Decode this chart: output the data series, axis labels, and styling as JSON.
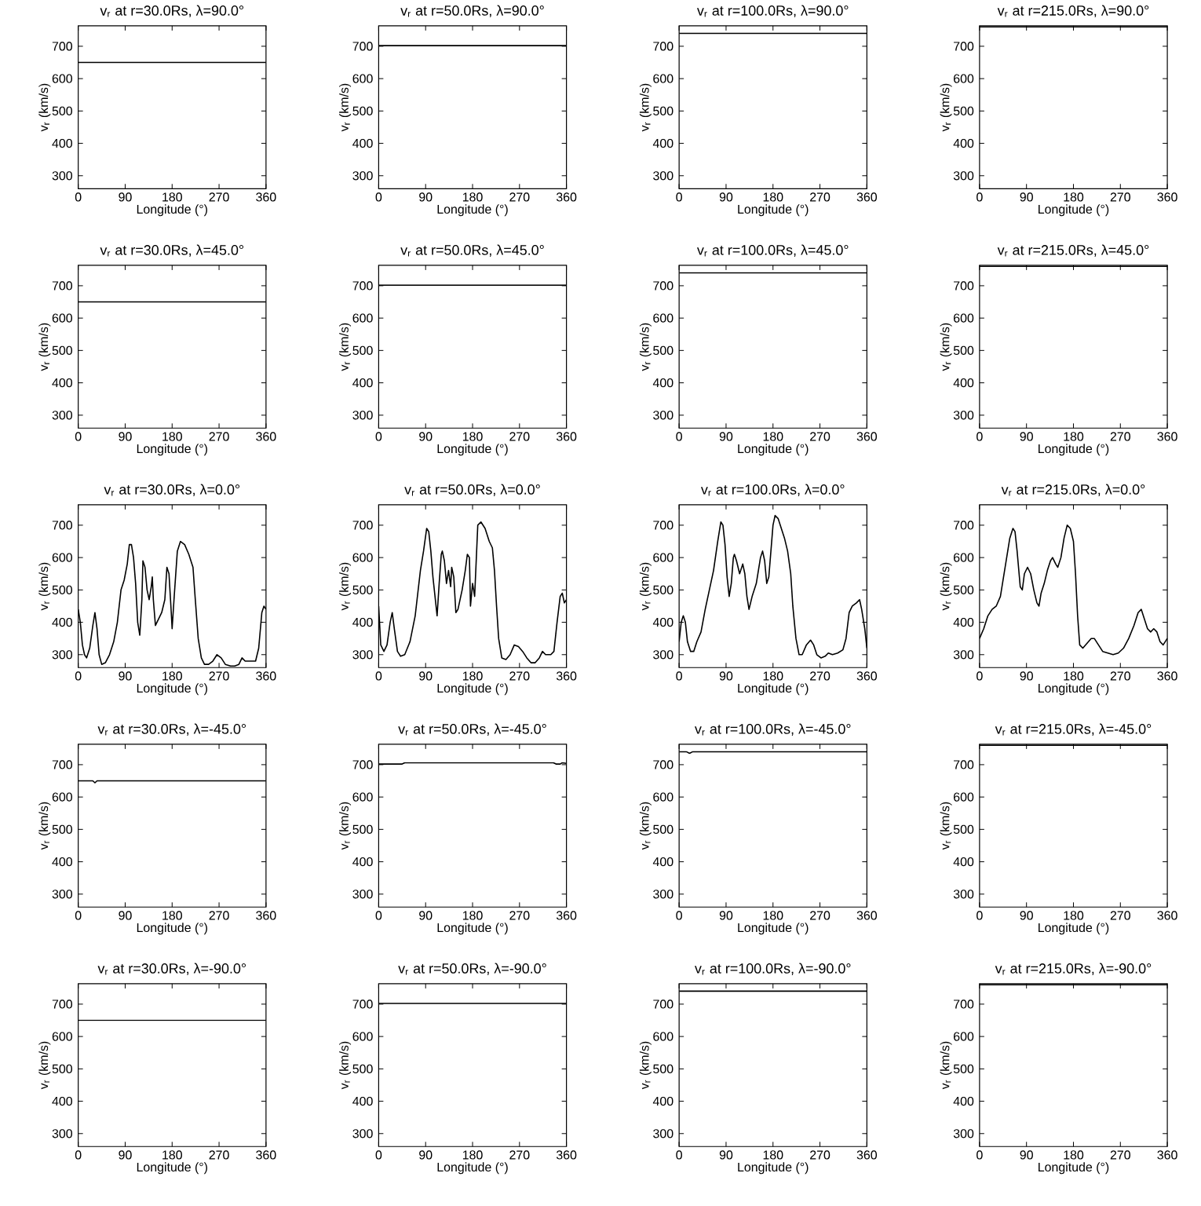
{
  "chart_data": [
    {
      "type": "line",
      "title": "v$_{r}$ at r=30.0Rs, λ=90.0°",
      "xlabel": "Longitude (°)",
      "ylabel": "v$_{r}$ (km/s)",
      "color": "#000000",
      "x": [
        0,
        360
      ],
      "values": [
        650,
        650
      ],
      "xlim": [
        0,
        360
      ],
      "ylim": [
        260,
        763
      ],
      "xticks": [
        0,
        90,
        180,
        270,
        360
      ],
      "yticks": [
        300,
        400,
        500,
        600,
        700
      ]
    },
    {
      "type": "line",
      "title": "v$_{r}$ at r=50.0Rs, λ=90.0°",
      "xlabel": "Longitude (°)",
      "ylabel": "v$_{r}$ (km/s)",
      "color": "#000000",
      "x": [
        0,
        360
      ],
      "values": [
        702,
        702
      ],
      "xlim": [
        0,
        360
      ],
      "ylim": [
        260,
        763
      ],
      "xticks": [
        0,
        90,
        180,
        270,
        360
      ],
      "yticks": [
        300,
        400,
        500,
        600,
        700
      ]
    },
    {
      "type": "line",
      "title": "v$_{r}$ at r=100.0Rs, λ=90.0°",
      "xlabel": "Longitude (°)",
      "ylabel": "v$_{r}$ (km/s)",
      "color": "#000000",
      "x": [
        0,
        360
      ],
      "values": [
        740,
        740
      ],
      "xlim": [
        0,
        360
      ],
      "ylim": [
        260,
        763
      ],
      "xticks": [
        0,
        90,
        180,
        270,
        360
      ],
      "yticks": [
        300,
        400,
        500,
        600,
        700
      ]
    },
    {
      "type": "line",
      "title": "v$_{r}$ at r=215.0Rs, λ=90.0°",
      "xlabel": "Longitude (°)",
      "ylabel": "v$_{r}$ (km/s)",
      "color": "#000000",
      "x": [
        0,
        360
      ],
      "values": [
        760,
        760
      ],
      "xlim": [
        0,
        360
      ],
      "ylim": [
        260,
        763
      ],
      "xticks": [
        0,
        90,
        180,
        270,
        360
      ],
      "yticks": [
        300,
        400,
        500,
        600,
        700
      ]
    },
    {
      "type": "line",
      "title": "v$_{r}$ at r=30.0Rs, λ=45.0°",
      "xlabel": "Longitude (°)",
      "ylabel": "v$_{r}$ (km/s)",
      "color": "#000000",
      "x": [
        0,
        360
      ],
      "values": [
        650,
        650
      ],
      "xlim": [
        0,
        360
      ],
      "ylim": [
        260,
        763
      ],
      "xticks": [
        0,
        90,
        180,
        270,
        360
      ],
      "yticks": [
        300,
        400,
        500,
        600,
        700
      ]
    },
    {
      "type": "line",
      "title": "v$_{r}$ at r=50.0Rs, λ=45.0°",
      "xlabel": "Longitude (°)",
      "ylabel": "v$_{r}$ (km/s)",
      "color": "#000000",
      "x": [
        0,
        360
      ],
      "values": [
        702,
        702
      ],
      "xlim": [
        0,
        360
      ],
      "ylim": [
        260,
        763
      ],
      "xticks": [
        0,
        90,
        180,
        270,
        360
      ],
      "yticks": [
        300,
        400,
        500,
        600,
        700
      ]
    },
    {
      "type": "line",
      "title": "v$_{r}$ at r=100.0Rs, λ=45.0°",
      "xlabel": "Longitude (°)",
      "ylabel": "v$_{r}$ (km/s)",
      "color": "#000000",
      "x": [
        0,
        360
      ],
      "values": [
        740,
        740
      ],
      "xlim": [
        0,
        360
      ],
      "ylim": [
        260,
        763
      ],
      "xticks": [
        0,
        90,
        180,
        270,
        360
      ],
      "yticks": [
        300,
        400,
        500,
        600,
        700
      ]
    },
    {
      "type": "line",
      "title": "v$_{r}$ at r=215.0Rs, λ=45.0°",
      "xlabel": "Longitude (°)",
      "ylabel": "v$_{r}$ (km/s)",
      "color": "#000000",
      "x": [
        0,
        360
      ],
      "values": [
        760,
        760
      ],
      "xlim": [
        0,
        360
      ],
      "ylim": [
        260,
        763
      ],
      "xticks": [
        0,
        90,
        180,
        270,
        360
      ],
      "yticks": [
        300,
        400,
        500,
        600,
        700
      ]
    },
    {
      "type": "line",
      "title": "v$_{r}$ at r=30.0Rs, λ=0.0°",
      "xlabel": "Longitude (°)",
      "ylabel": "v$_{r}$ (km/s)",
      "color": "#000000",
      "x": [
        0,
        4,
        8,
        12,
        16,
        22,
        28,
        32,
        36,
        40,
        45,
        52,
        60,
        68,
        75,
        82,
        88,
        94,
        98,
        102,
        106,
        110,
        114,
        118,
        122,
        124,
        128,
        132,
        136,
        140,
        142,
        144,
        148,
        154,
        160,
        166,
        170,
        174,
        178,
        180,
        184,
        190,
        196,
        204,
        212,
        220,
        224,
        230,
        236,
        242,
        250,
        258,
        266,
        274,
        282,
        292,
        300,
        308,
        314,
        320,
        330,
        340,
        346,
        352,
        356,
        360
      ],
      "values": [
        440,
        400,
        330,
        300,
        290,
        320,
        390,
        430,
        380,
        300,
        270,
        275,
        300,
        340,
        400,
        500,
        530,
        580,
        640,
        640,
        600,
        520,
        400,
        360,
        470,
        590,
        570,
        500,
        470,
        510,
        540,
        470,
        390,
        410,
        430,
        470,
        570,
        550,
        440,
        380,
        480,
        620,
        650,
        640,
        610,
        570,
        480,
        350,
        290,
        270,
        270,
        280,
        300,
        290,
        270,
        265,
        265,
        270,
        290,
        280,
        280,
        280,
        320,
        430,
        450,
        440
      ],
      "xlim": [
        0,
        360
      ],
      "ylim": [
        260,
        763
      ],
      "xticks": [
        0,
        90,
        180,
        270,
        360
      ],
      "yticks": [
        300,
        400,
        500,
        600,
        700
      ]
    },
    {
      "type": "line",
      "title": "v$_{r}$ at r=50.0Rs, λ=0.0°",
      "xlabel": "Longitude (°)",
      "ylabel": "v$_{r}$ (km/s)",
      "color": "#000000",
      "x": [
        0,
        4,
        10,
        16,
        22,
        26,
        30,
        36,
        42,
        50,
        60,
        70,
        80,
        86,
        92,
        96,
        100,
        104,
        108,
        112,
        116,
        120,
        122,
        126,
        130,
        134,
        138,
        140,
        144,
        148,
        152,
        160,
        166,
        170,
        174,
        176,
        180,
        184,
        190,
        196,
        204,
        212,
        218,
        222,
        226,
        230,
        236,
        244,
        252,
        260,
        268,
        276,
        284,
        292,
        300,
        308,
        314,
        320,
        330,
        336,
        342,
        348,
        352,
        356,
        360
      ],
      "values": [
        450,
        330,
        310,
        330,
        400,
        430,
        380,
        310,
        295,
        300,
        340,
        420,
        560,
        620,
        690,
        680,
        620,
        540,
        480,
        420,
        520,
        610,
        620,
        590,
        520,
        560,
        510,
        570,
        540,
        430,
        440,
        500,
        560,
        610,
        600,
        450,
        520,
        480,
        700,
        710,
        690,
        650,
        630,
        560,
        450,
        350,
        290,
        285,
        300,
        330,
        325,
        310,
        290,
        275,
        275,
        290,
        310,
        300,
        300,
        310,
        400,
        480,
        490,
        460,
        470
      ],
      "xlim": [
        0,
        360
      ],
      "ylim": [
        260,
        763
      ],
      "xticks": [
        0,
        90,
        180,
        270,
        360
      ],
      "yticks": [
        300,
        400,
        500,
        600,
        700
      ]
    },
    {
      "type": "line",
      "title": "v$_{r}$ at r=100.0Rs, λ=0.0°",
      "xlabel": "Longitude (°)",
      "ylabel": "v$_{r}$ (km/s)",
      "color": "#000000",
      "x": [
        0,
        4,
        8,
        12,
        16,
        22,
        28,
        34,
        42,
        50,
        58,
        66,
        74,
        80,
        84,
        88,
        92,
        96,
        100,
        104,
        106,
        110,
        116,
        122,
        126,
        130,
        134,
        140,
        148,
        156,
        160,
        164,
        168,
        172,
        176,
        180,
        184,
        190,
        196,
        202,
        208,
        214,
        218,
        224,
        230,
        236,
        244,
        252,
        258,
        264,
        272,
        280,
        286,
        294,
        304,
        314,
        320,
        326,
        332,
        340,
        346,
        350,
        356,
        360
      ],
      "values": [
        340,
        400,
        420,
        400,
        340,
        310,
        310,
        340,
        370,
        440,
        500,
        560,
        650,
        710,
        700,
        640,
        540,
        480,
        520,
        600,
        610,
        590,
        550,
        580,
        550,
        480,
        440,
        480,
        520,
        600,
        620,
        590,
        520,
        540,
        620,
        700,
        730,
        720,
        690,
        660,
        620,
        550,
        450,
        350,
        300,
        300,
        330,
        345,
        330,
        300,
        290,
        295,
        305,
        300,
        305,
        315,
        350,
        430,
        450,
        460,
        470,
        440,
        380,
        320
      ],
      "xlim": [
        0,
        360
      ],
      "ylim": [
        260,
        763
      ],
      "xticks": [
        0,
        90,
        180,
        270,
        360
      ],
      "yticks": [
        300,
        400,
        500,
        600,
        700
      ]
    },
    {
      "type": "line",
      "title": "v$_{r}$ at r=215.0Rs, λ=0.0°",
      "xlabel": "Longitude (°)",
      "ylabel": "v$_{r}$ (km/s)",
      "color": "#000000",
      "x": [
        0,
        8,
        16,
        24,
        32,
        40,
        46,
        52,
        58,
        64,
        68,
        72,
        78,
        82,
        86,
        92,
        98,
        104,
        110,
        114,
        118,
        124,
        130,
        136,
        140,
        146,
        150,
        156,
        162,
        168,
        174,
        180,
        184,
        188,
        192,
        198,
        206,
        214,
        220,
        228,
        236,
        246,
        256,
        266,
        276,
        286,
        296,
        304,
        310,
        316,
        322,
        328,
        334,
        340,
        346,
        352,
        360
      ],
      "values": [
        350,
        380,
        420,
        440,
        450,
        480,
        540,
        600,
        660,
        690,
        680,
        620,
        510,
        500,
        550,
        570,
        550,
        500,
        460,
        450,
        490,
        520,
        560,
        590,
        600,
        580,
        570,
        600,
        660,
        700,
        690,
        650,
        550,
        420,
        330,
        320,
        335,
        350,
        350,
        330,
        310,
        305,
        300,
        305,
        320,
        350,
        390,
        430,
        440,
        410,
        380,
        370,
        380,
        370,
        340,
        330,
        350
      ],
      "xlim": [
        0,
        360
      ],
      "ylim": [
        260,
        763
      ],
      "xticks": [
        0,
        90,
        180,
        270,
        360
      ],
      "yticks": [
        300,
        400,
        500,
        600,
        700
      ]
    },
    {
      "type": "line",
      "title": "v$_{r}$ at r=30.0Rs, λ=-45.0°",
      "xlabel": "Longitude (°)",
      "ylabel": "v$_{r}$ (km/s)",
      "color": "#000000",
      "x": [
        0,
        28,
        32,
        36,
        360
      ],
      "values": [
        650,
        650,
        644,
        650,
        650
      ],
      "xlim": [
        0,
        360
      ],
      "ylim": [
        260,
        763
      ],
      "xticks": [
        0,
        90,
        180,
        270,
        360
      ],
      "yticks": [
        300,
        400,
        500,
        600,
        700
      ]
    },
    {
      "type": "line",
      "title": "v$_{r}$ at r=50.0Rs, λ=-45.0°",
      "xlabel": "Longitude (°)",
      "ylabel": "v$_{r}$ (km/s)",
      "color": "#000000",
      "x": [
        0,
        45,
        50,
        335,
        340,
        348,
        352,
        360
      ],
      "values": [
        702,
        702,
        706,
        706,
        702,
        702,
        706,
        704
      ],
      "xlim": [
        0,
        360
      ],
      "ylim": [
        260,
        763
      ],
      "xticks": [
        0,
        90,
        180,
        270,
        360
      ],
      "yticks": [
        300,
        400,
        500,
        600,
        700
      ]
    },
    {
      "type": "line",
      "title": "v$_{r}$ at r=100.0Rs, λ=-45.0°",
      "xlabel": "Longitude (°)",
      "ylabel": "v$_{r}$ (km/s)",
      "color": "#000000",
      "x": [
        0,
        14,
        20,
        26,
        360
      ],
      "values": [
        740,
        740,
        735,
        740,
        740
      ],
      "xlim": [
        0,
        360
      ],
      "ylim": [
        260,
        763
      ],
      "xticks": [
        0,
        90,
        180,
        270,
        360
      ],
      "yticks": [
        300,
        400,
        500,
        600,
        700
      ]
    },
    {
      "type": "line",
      "title": "v$_{r}$ at r=215.0Rs, λ=-45.0°",
      "xlabel": "Longitude (°)",
      "ylabel": "v$_{r}$ (km/s)",
      "color": "#000000",
      "x": [
        0,
        360
      ],
      "values": [
        760,
        760
      ],
      "xlim": [
        0,
        360
      ],
      "ylim": [
        260,
        763
      ],
      "xticks": [
        0,
        90,
        180,
        270,
        360
      ],
      "yticks": [
        300,
        400,
        500,
        600,
        700
      ]
    },
    {
      "type": "line",
      "title": "v$_{r}$ at r=30.0Rs, λ=-90.0°",
      "xlabel": "Longitude (°)",
      "ylabel": "v$_{r}$ (km/s)",
      "color": "#000000",
      "x": [
        0,
        360
      ],
      "values": [
        650,
        650
      ],
      "xlim": [
        0,
        360
      ],
      "ylim": [
        260,
        763
      ],
      "xticks": [
        0,
        90,
        180,
        270,
        360
      ],
      "yticks": [
        300,
        400,
        500,
        600,
        700
      ]
    },
    {
      "type": "line",
      "title": "v$_{r}$ at r=50.0Rs, λ=-90.0°",
      "xlabel": "Longitude (°)",
      "ylabel": "v$_{r}$ (km/s)",
      "color": "#000000",
      "x": [
        0,
        360
      ],
      "values": [
        702,
        702
      ],
      "xlim": [
        0,
        360
      ],
      "ylim": [
        260,
        763
      ],
      "xticks": [
        0,
        90,
        180,
        270,
        360
      ],
      "yticks": [
        300,
        400,
        500,
        600,
        700
      ]
    },
    {
      "type": "line",
      "title": "v$_{r}$ at r=100.0Rs, λ=-90.0°",
      "xlabel": "Longitude (°)",
      "ylabel": "v$_{r}$ (km/s)",
      "color": "#000000",
      "x": [
        0,
        360
      ],
      "values": [
        740,
        740
      ],
      "xlim": [
        0,
        360
      ],
      "ylim": [
        260,
        763
      ],
      "xticks": [
        0,
        90,
        180,
        270,
        360
      ],
      "yticks": [
        300,
        400,
        500,
        600,
        700
      ]
    },
    {
      "type": "line",
      "title": "v$_{r}$ at r=215.0Rs, λ=-90.0°",
      "xlabel": "Longitude (°)",
      "ylabel": "v$_{r}$ (km/s)",
      "color": "#000000",
      "x": [
        0,
        360
      ],
      "values": [
        760,
        760
      ],
      "xlim": [
        0,
        360
      ],
      "ylim": [
        260,
        763
      ],
      "xticks": [
        0,
        90,
        180,
        270,
        360
      ],
      "yticks": [
        300,
        400,
        500,
        600,
        700
      ]
    }
  ]
}
